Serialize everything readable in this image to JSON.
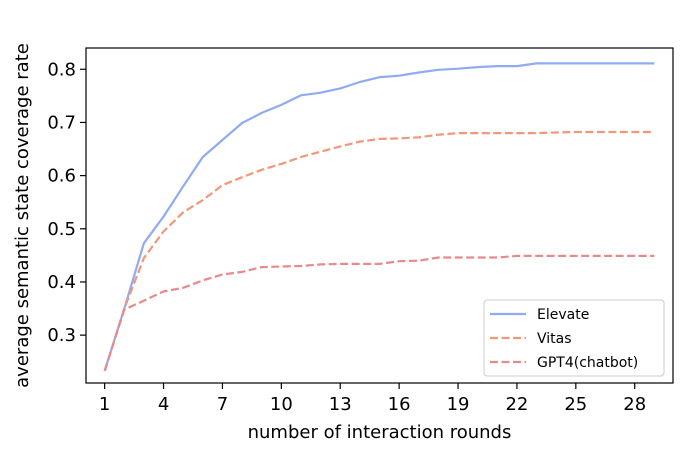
{
  "chart_data": {
    "type": "line",
    "title": "",
    "xlabel": "number of interaction rounds",
    "ylabel": "average semantic state coverage rate",
    "x": [
      1,
      2,
      3,
      4,
      5,
      6,
      7,
      8,
      9,
      10,
      11,
      12,
      13,
      14,
      15,
      16,
      17,
      18,
      19,
      20,
      21,
      22,
      23,
      24,
      25,
      26,
      27,
      28,
      29
    ],
    "xticks": [
      1,
      4,
      7,
      10,
      13,
      16,
      19,
      22,
      25,
      28
    ],
    "xtick_labels": [
      "1",
      "4",
      "7",
      "10",
      "13",
      "16",
      "19",
      "22",
      "25",
      "28"
    ],
    "xlim": [
      0.05,
      29.95
    ],
    "yticks": [
      0.3,
      0.4,
      0.5,
      0.6,
      0.7,
      0.8
    ],
    "ytick_labels": [
      "0.3",
      "0.4",
      "0.5",
      "0.6",
      "0.7",
      "0.8"
    ],
    "ylim": [
      0.21,
      0.84
    ],
    "grid": false,
    "legend_position": "lower-right",
    "series": [
      {
        "name": "Elevate",
        "color": "#8fabf2",
        "dash": "solid",
        "values": [
          0.233,
          0.35,
          0.473,
          0.523,
          0.58,
          0.635,
          0.667,
          0.699,
          0.718,
          0.733,
          0.751,
          0.756,
          0.764,
          0.776,
          0.785,
          0.788,
          0.794,
          0.799,
          0.801,
          0.804,
          0.806,
          0.806,
          0.811,
          0.811,
          0.811,
          0.811,
          0.811,
          0.811,
          0.811
        ]
      },
      {
        "name": "Vitas",
        "color": "#f29778",
        "dash": "dashed",
        "values": [
          0.233,
          0.35,
          0.445,
          0.495,
          0.531,
          0.554,
          0.582,
          0.597,
          0.611,
          0.622,
          0.635,
          0.645,
          0.655,
          0.664,
          0.669,
          0.67,
          0.672,
          0.677,
          0.68,
          0.68,
          0.68,
          0.68,
          0.68,
          0.681,
          0.682,
          0.682,
          0.682,
          0.682,
          0.682
        ]
      },
      {
        "name": "GPT4(chatbot)",
        "color": "#e8898c",
        "dash": "dashed",
        "values": [
          0.233,
          0.348,
          0.365,
          0.382,
          0.389,
          0.403,
          0.414,
          0.419,
          0.428,
          0.429,
          0.43,
          0.433,
          0.434,
          0.434,
          0.434,
          0.439,
          0.44,
          0.446,
          0.446,
          0.446,
          0.446,
          0.449,
          0.449,
          0.449,
          0.449,
          0.449,
          0.449,
          0.449,
          0.449
        ]
      }
    ]
  }
}
